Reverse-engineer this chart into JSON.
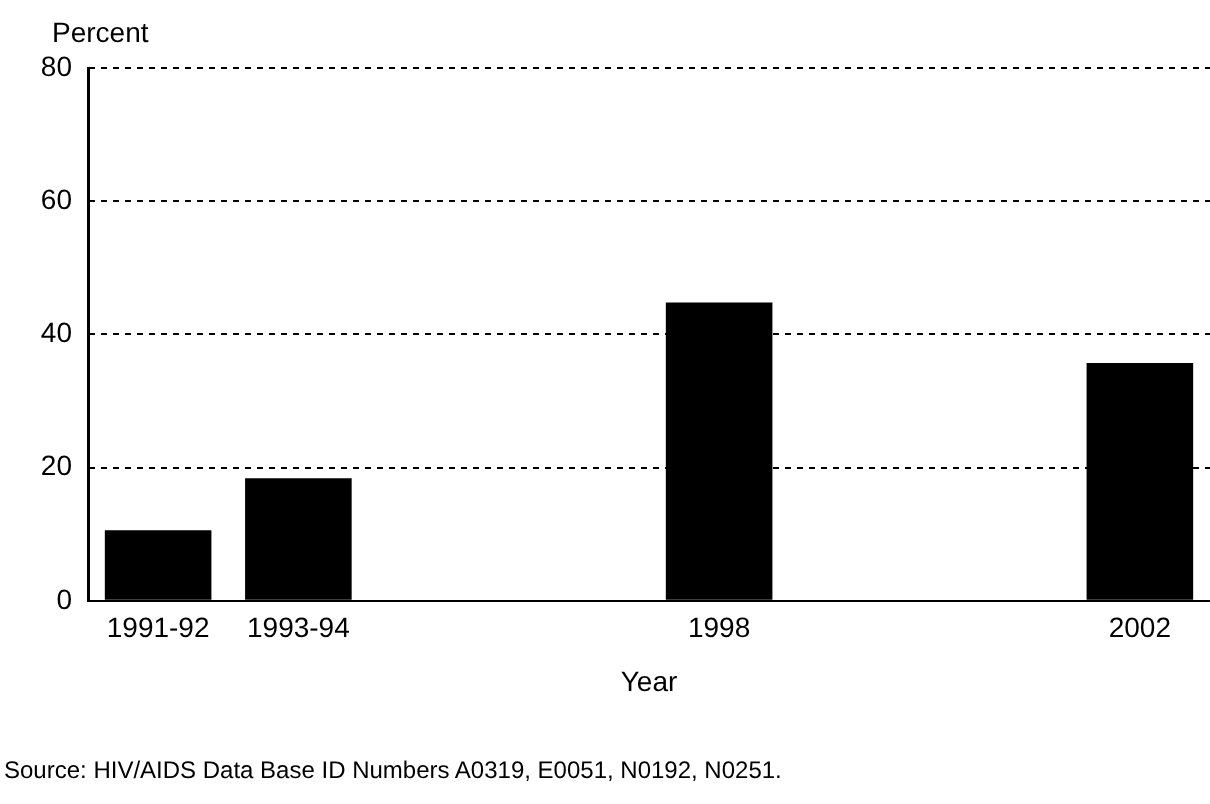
{
  "chart_data": {
    "type": "bar",
    "ylabel": "Percent",
    "xlabel": "Year",
    "categories": [
      "1991-92",
      "1993-94",
      null,
      null,
      "1998",
      null,
      null,
      "2002"
    ],
    "values": [
      10.6,
      18.4,
      null,
      null,
      44.8,
      null,
      null,
      35.7
    ],
    "color": "#000000",
    "ylim": [
      0,
      80
    ],
    "yticks": [
      0,
      20,
      40,
      60,
      80
    ],
    "grid": "y",
    "legend": false,
    "annotations": [
      "Source:  HIV/AIDS Data Base ID Numbers A0319, E0051, N0192, N0251."
    ]
  }
}
